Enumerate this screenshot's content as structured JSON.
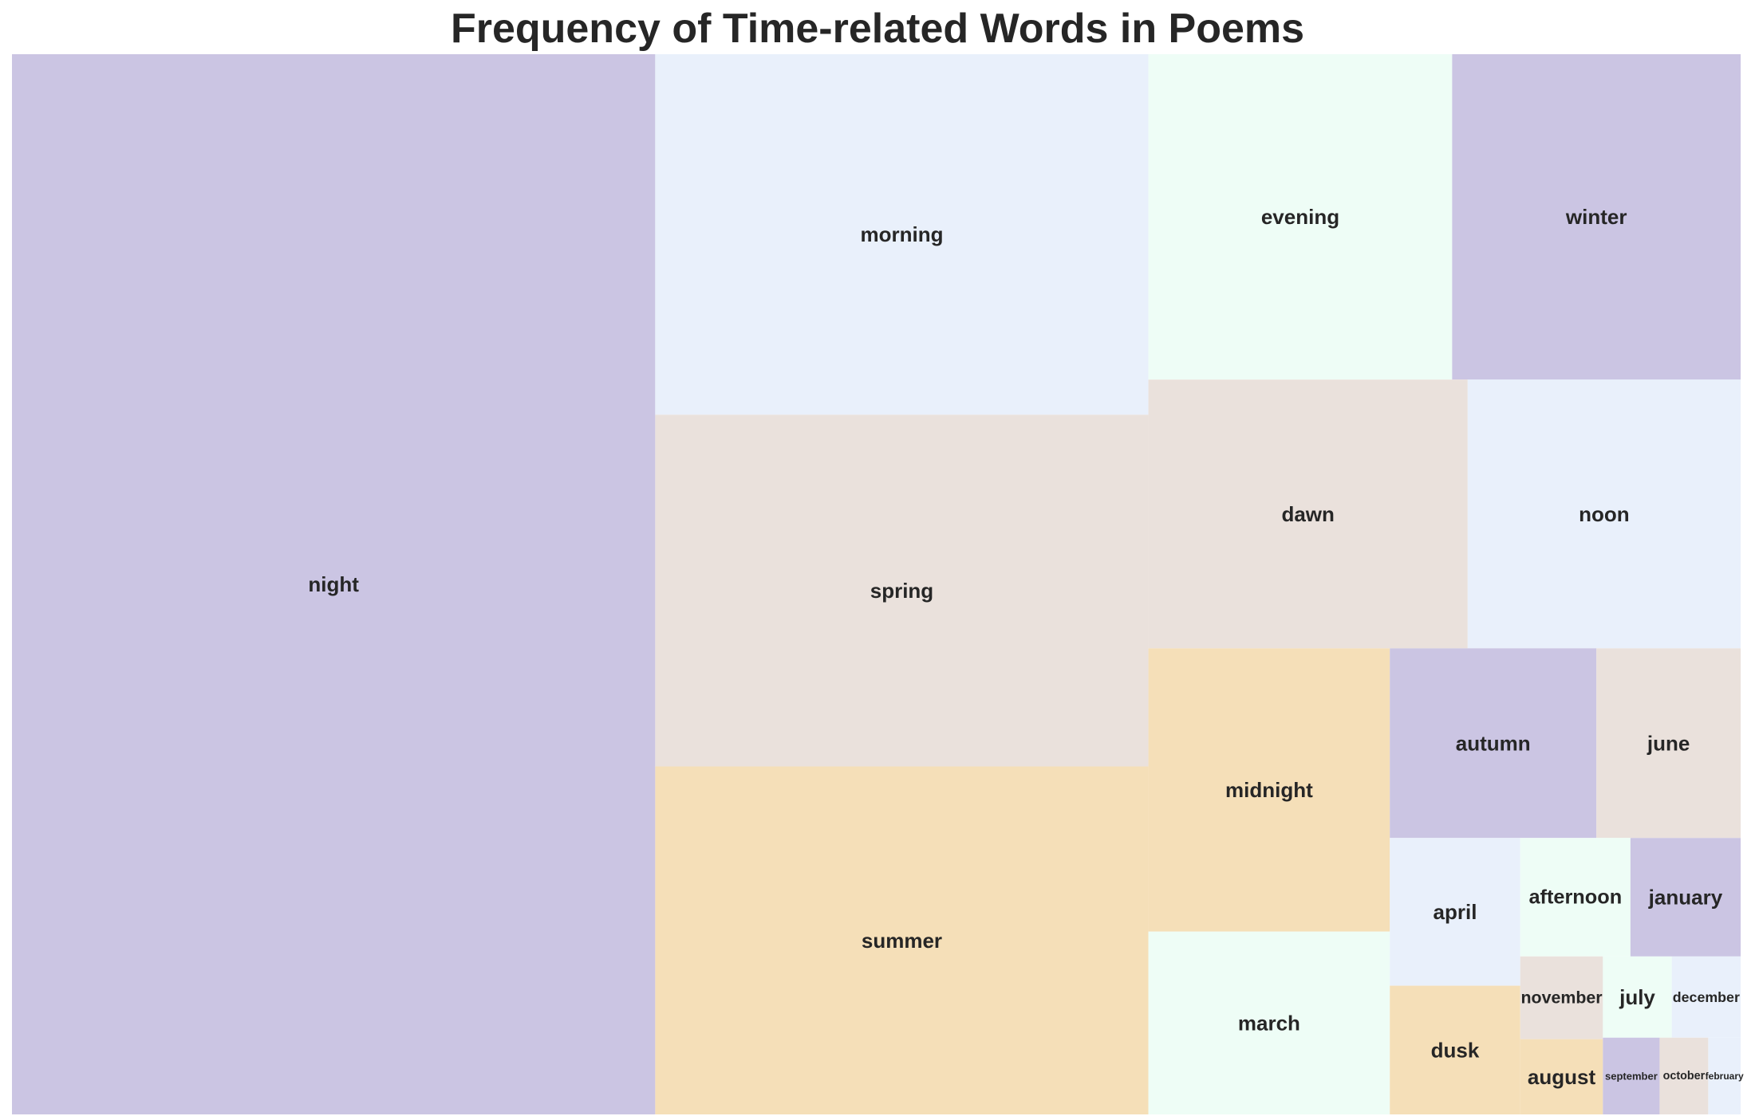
{
  "colors": {
    "purple": "#cbc5e3",
    "tan": "#eae1dc",
    "blue": "#e9f0fb",
    "mint": "#eefdf6",
    "wheat": "#f5dfb8",
    "text": "#262626"
  },
  "chart_data": {
    "type": "treemap",
    "title": "Frequency of Time-related Words in Poems",
    "items": [
      {
        "label": "night",
        "value": 1097,
        "color": "purple"
      },
      {
        "label": "spring",
        "value": 279,
        "color": "tan"
      },
      {
        "label": "morning",
        "value": 286,
        "color": "blue"
      },
      {
        "label": "summer",
        "value": 276,
        "color": "wheat"
      },
      {
        "label": "evening",
        "value": 159,
        "color": "mint"
      },
      {
        "label": "winter",
        "value": 151,
        "color": "purple"
      },
      {
        "label": "dawn",
        "value": 138,
        "color": "tan"
      },
      {
        "label": "noon",
        "value": 118,
        "color": "blue"
      },
      {
        "label": "midnight",
        "value": 110,
        "color": "wheat"
      },
      {
        "label": "march",
        "value": 71,
        "color": "mint"
      },
      {
        "label": "autumn",
        "value": 63,
        "color": "purple"
      },
      {
        "label": "june",
        "value": 44,
        "color": "tan"
      },
      {
        "label": "april",
        "value": 31,
        "color": "blue"
      },
      {
        "label": "dusk",
        "value": 27,
        "color": "wheat"
      },
      {
        "label": "afternoon",
        "value": 21,
        "color": "mint"
      },
      {
        "label": "january",
        "value": 21,
        "color": "purple"
      },
      {
        "label": "november",
        "value": 11,
        "color": "tan"
      },
      {
        "label": "august",
        "value": 10,
        "color": "wheat"
      },
      {
        "label": "july",
        "value": 9,
        "color": "mint"
      },
      {
        "label": "december",
        "value": 9,
        "color": "blue"
      },
      {
        "label": "september",
        "value": 7,
        "color": "purple"
      },
      {
        "label": "october",
        "value": 6,
        "color": "tan"
      },
      {
        "label": "february",
        "value": 4,
        "color": "blue"
      }
    ]
  }
}
